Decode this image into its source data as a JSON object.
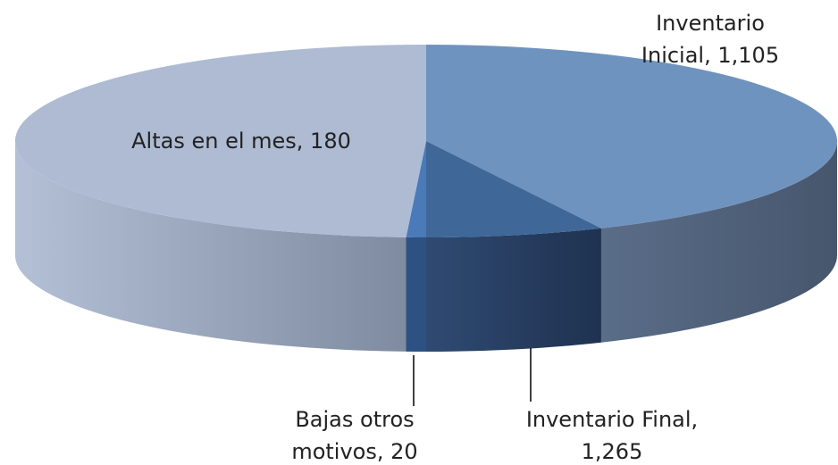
{
  "chart_data": {
    "type": "pie3d",
    "categories": [
      "Inventario Inicial,",
      "Altas en el mes,",
      "Bajas otros motivos,",
      "Inventario Final,"
    ],
    "values": [
      1105,
      180,
      20,
      1265
    ],
    "value_labels": [
      "1,105",
      "180",
      "20",
      "1,265"
    ],
    "colors": [
      "#6f93bf",
      "#3f6899",
      "#4a7ab8",
      "#aebbd2"
    ]
  }
}
